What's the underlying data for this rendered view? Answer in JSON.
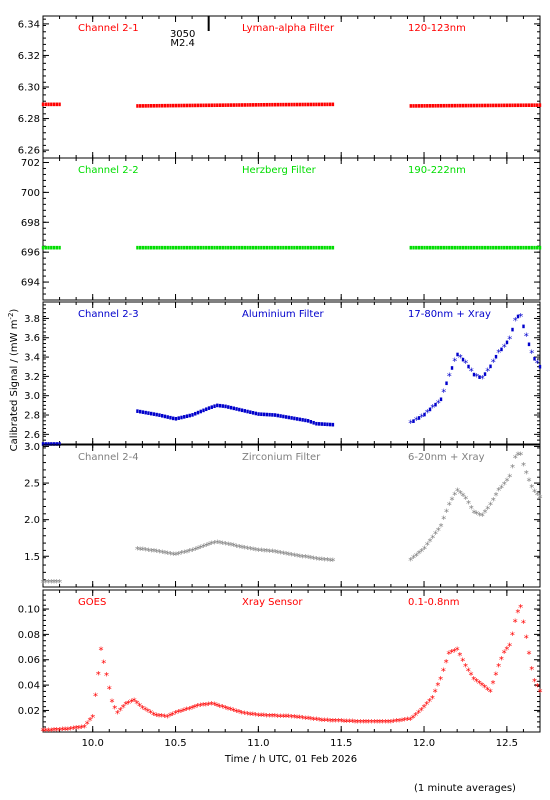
{
  "chart_data": {
    "type": "scatter",
    "xlabel": "Time / h UTC, 01 Feb 2026",
    "ylabel": "Calibrated Signal / (mW m",
    "ylabel_sup": "-2",
    "ylabel_close": ")",
    "footnote": "(1 minute averages)",
    "xlim": [
      9.7,
      12.7
    ],
    "xticks": [
      10.0,
      10.5,
      11.0,
      11.5,
      12.0,
      12.5
    ],
    "xtick_labels": [
      "10.0",
      "10.5",
      "11.0",
      "11.5",
      "12.0",
      "12.5"
    ],
    "flare_marker": {
      "x": 10.7,
      "label_1": "3050",
      "label_2": "M2.4"
    },
    "panels": [
      {
        "id": "ch1",
        "color": "#ff0000",
        "labels": [
          "Channel 2-1",
          "Lyman-alpha Filter",
          "120-123nm"
        ],
        "ylim": [
          6.255,
          6.345
        ],
        "yticks": [
          6.26,
          6.28,
          6.3,
          6.32,
          6.34
        ],
        "ytick_labels": [
          "6.26",
          "6.28",
          "6.30",
          "6.32",
          "6.34"
        ],
        "segments": [
          {
            "x": [
              9.7,
              9.8
            ],
            "y": [
              6.289,
              6.289
            ]
          },
          {
            "x": [
              10.27,
              10.8,
              11.1,
              11.45
            ],
            "y": [
              6.288,
              6.2885,
              6.2888,
              6.289
            ]
          },
          {
            "x": [
              11.92,
              12.7
            ],
            "y": [
              6.288,
              6.2885
            ]
          }
        ]
      },
      {
        "id": "ch2",
        "color": "#00dd00",
        "labels": [
          "Channel 2-2",
          "Herzberg Filter",
          "190-222nm"
        ],
        "ylim": [
          692.8,
          702.3
        ],
        "yticks": [
          694,
          696,
          698,
          700,
          702
        ],
        "ytick_labels": [
          "694",
          "696",
          "698",
          "700",
          "702"
        ],
        "segments": [
          {
            "x": [
              9.7,
              9.8
            ],
            "y": [
              696.3,
              696.3
            ]
          },
          {
            "x": [
              10.27,
              11.45
            ],
            "y": [
              696.3,
              696.3
            ]
          },
          {
            "x": [
              11.92,
              12.7
            ],
            "y": [
              696.3,
              696.3
            ]
          }
        ]
      },
      {
        "id": "ch3",
        "color": "#0000cc",
        "labels": [
          "Channel 2-3",
          "Aluminium Filter",
          "17-80nm + Xray"
        ],
        "ylim": [
          2.5,
          3.97
        ],
        "yticks": [
          2.6,
          2.8,
          3.0,
          3.2,
          3.4,
          3.6,
          3.8
        ],
        "ytick_labels": [
          "2.6",
          "2.8",
          "3.0",
          "3.2",
          "3.4",
          "3.6",
          "3.8"
        ],
        "segments": [
          {
            "x": [
              9.7,
              9.8
            ],
            "y": [
              2.5,
              2.5
            ]
          },
          {
            "x": [
              10.27,
              10.4,
              10.5,
              10.6,
              10.7,
              10.75,
              10.8,
              10.9,
              11.0,
              11.1,
              11.2,
              11.3,
              11.35,
              11.45
            ],
            "y": [
              2.84,
              2.8,
              2.76,
              2.8,
              2.87,
              2.9,
              2.89,
              2.85,
              2.81,
              2.8,
              2.77,
              2.74,
              2.71,
              2.7
            ]
          },
          {
            "x": [
              11.92,
              12.0,
              12.05,
              12.1,
              12.15,
              12.2,
              12.25,
              12.3,
              12.35,
              12.4,
              12.45,
              12.48,
              12.52,
              12.55,
              12.58,
              12.6,
              12.63,
              12.66,
              12.7
            ],
            "y": [
              2.72,
              2.8,
              2.88,
              2.95,
              3.2,
              3.43,
              3.35,
              3.22,
              3.18,
              3.3,
              3.45,
              3.5,
              3.6,
              3.78,
              3.85,
              3.72,
              3.55,
              3.4,
              3.3
            ]
          }
        ]
      },
      {
        "id": "ch4",
        "color": "#808080",
        "labels": [
          "Channel 2-4",
          "Zirconium Filter",
          "6-20nm + Xray"
        ],
        "ylim": [
          1.08,
          3.02
        ],
        "yticks": [
          1.5,
          2.0,
          2.5,
          3.0
        ],
        "ytick_labels": [
          "1.5",
          "2.0",
          "2.5",
          "3.0"
        ],
        "segments": [
          {
            "x": [
              9.7,
              9.8
            ],
            "y": [
              1.15,
              1.15
            ]
          },
          {
            "x": [
              10.27,
              10.4,
              10.5,
              10.6,
              10.7,
              10.75,
              10.8,
              10.9,
              11.0,
              11.1,
              11.2,
              11.3,
              11.35,
              11.45
            ],
            "y": [
              1.6,
              1.56,
              1.52,
              1.58,
              1.66,
              1.69,
              1.67,
              1.62,
              1.58,
              1.56,
              1.52,
              1.48,
              1.46,
              1.44
            ]
          },
          {
            "x": [
              11.92,
              12.0,
              12.05,
              12.1,
              12.15,
              12.2,
              12.25,
              12.3,
              12.35,
              12.4,
              12.45,
              12.48,
              12.52,
              12.55,
              12.58,
              12.6,
              12.63,
              12.66,
              12.7
            ],
            "y": [
              1.45,
              1.6,
              1.75,
              1.9,
              2.2,
              2.4,
              2.3,
              2.1,
              2.05,
              2.2,
              2.4,
              2.47,
              2.6,
              2.85,
              2.92,
              2.75,
              2.55,
              2.4,
              2.3
            ]
          }
        ]
      },
      {
        "id": "goes",
        "color": "#ff0000",
        "labels": [
          "GOES",
          "Xray Sensor",
          "0.1-0.8nm"
        ],
        "ylim": [
          0.003,
          0.115
        ],
        "yticks": [
          0.02,
          0.04,
          0.06,
          0.08,
          0.1
        ],
        "ytick_labels": [
          "0.02",
          "0.04",
          "0.06",
          "0.08",
          "0.10"
        ],
        "segments": [
          {
            "x": [
              9.7,
              9.85,
              9.95,
              10.0,
              10.03,
              10.05,
              10.08,
              10.12,
              10.15,
              10.2,
              10.25,
              10.3,
              10.38,
              10.45,
              10.5,
              10.55,
              10.65,
              10.72,
              10.8,
              10.9,
              11.0,
              11.2,
              11.4,
              11.6,
              11.8,
              11.92,
              11.98,
              12.05,
              12.1,
              12.15,
              12.2,
              12.25,
              12.3,
              12.35,
              12.4,
              12.45,
              12.48,
              12.52,
              12.55,
              12.58,
              12.62,
              12.66,
              12.7
            ],
            "y": [
              0.004,
              0.005,
              0.007,
              0.015,
              0.045,
              0.068,
              0.05,
              0.025,
              0.018,
              0.025,
              0.028,
              0.022,
              0.016,
              0.015,
              0.018,
              0.02,
              0.024,
              0.025,
              0.022,
              0.018,
              0.016,
              0.015,
              0.012,
              0.011,
              0.011,
              0.013,
              0.02,
              0.03,
              0.045,
              0.065,
              0.068,
              0.055,
              0.045,
              0.04,
              0.035,
              0.055,
              0.065,
              0.072,
              0.09,
              0.104,
              0.075,
              0.045,
              0.035
            ]
          }
        ]
      }
    ]
  }
}
